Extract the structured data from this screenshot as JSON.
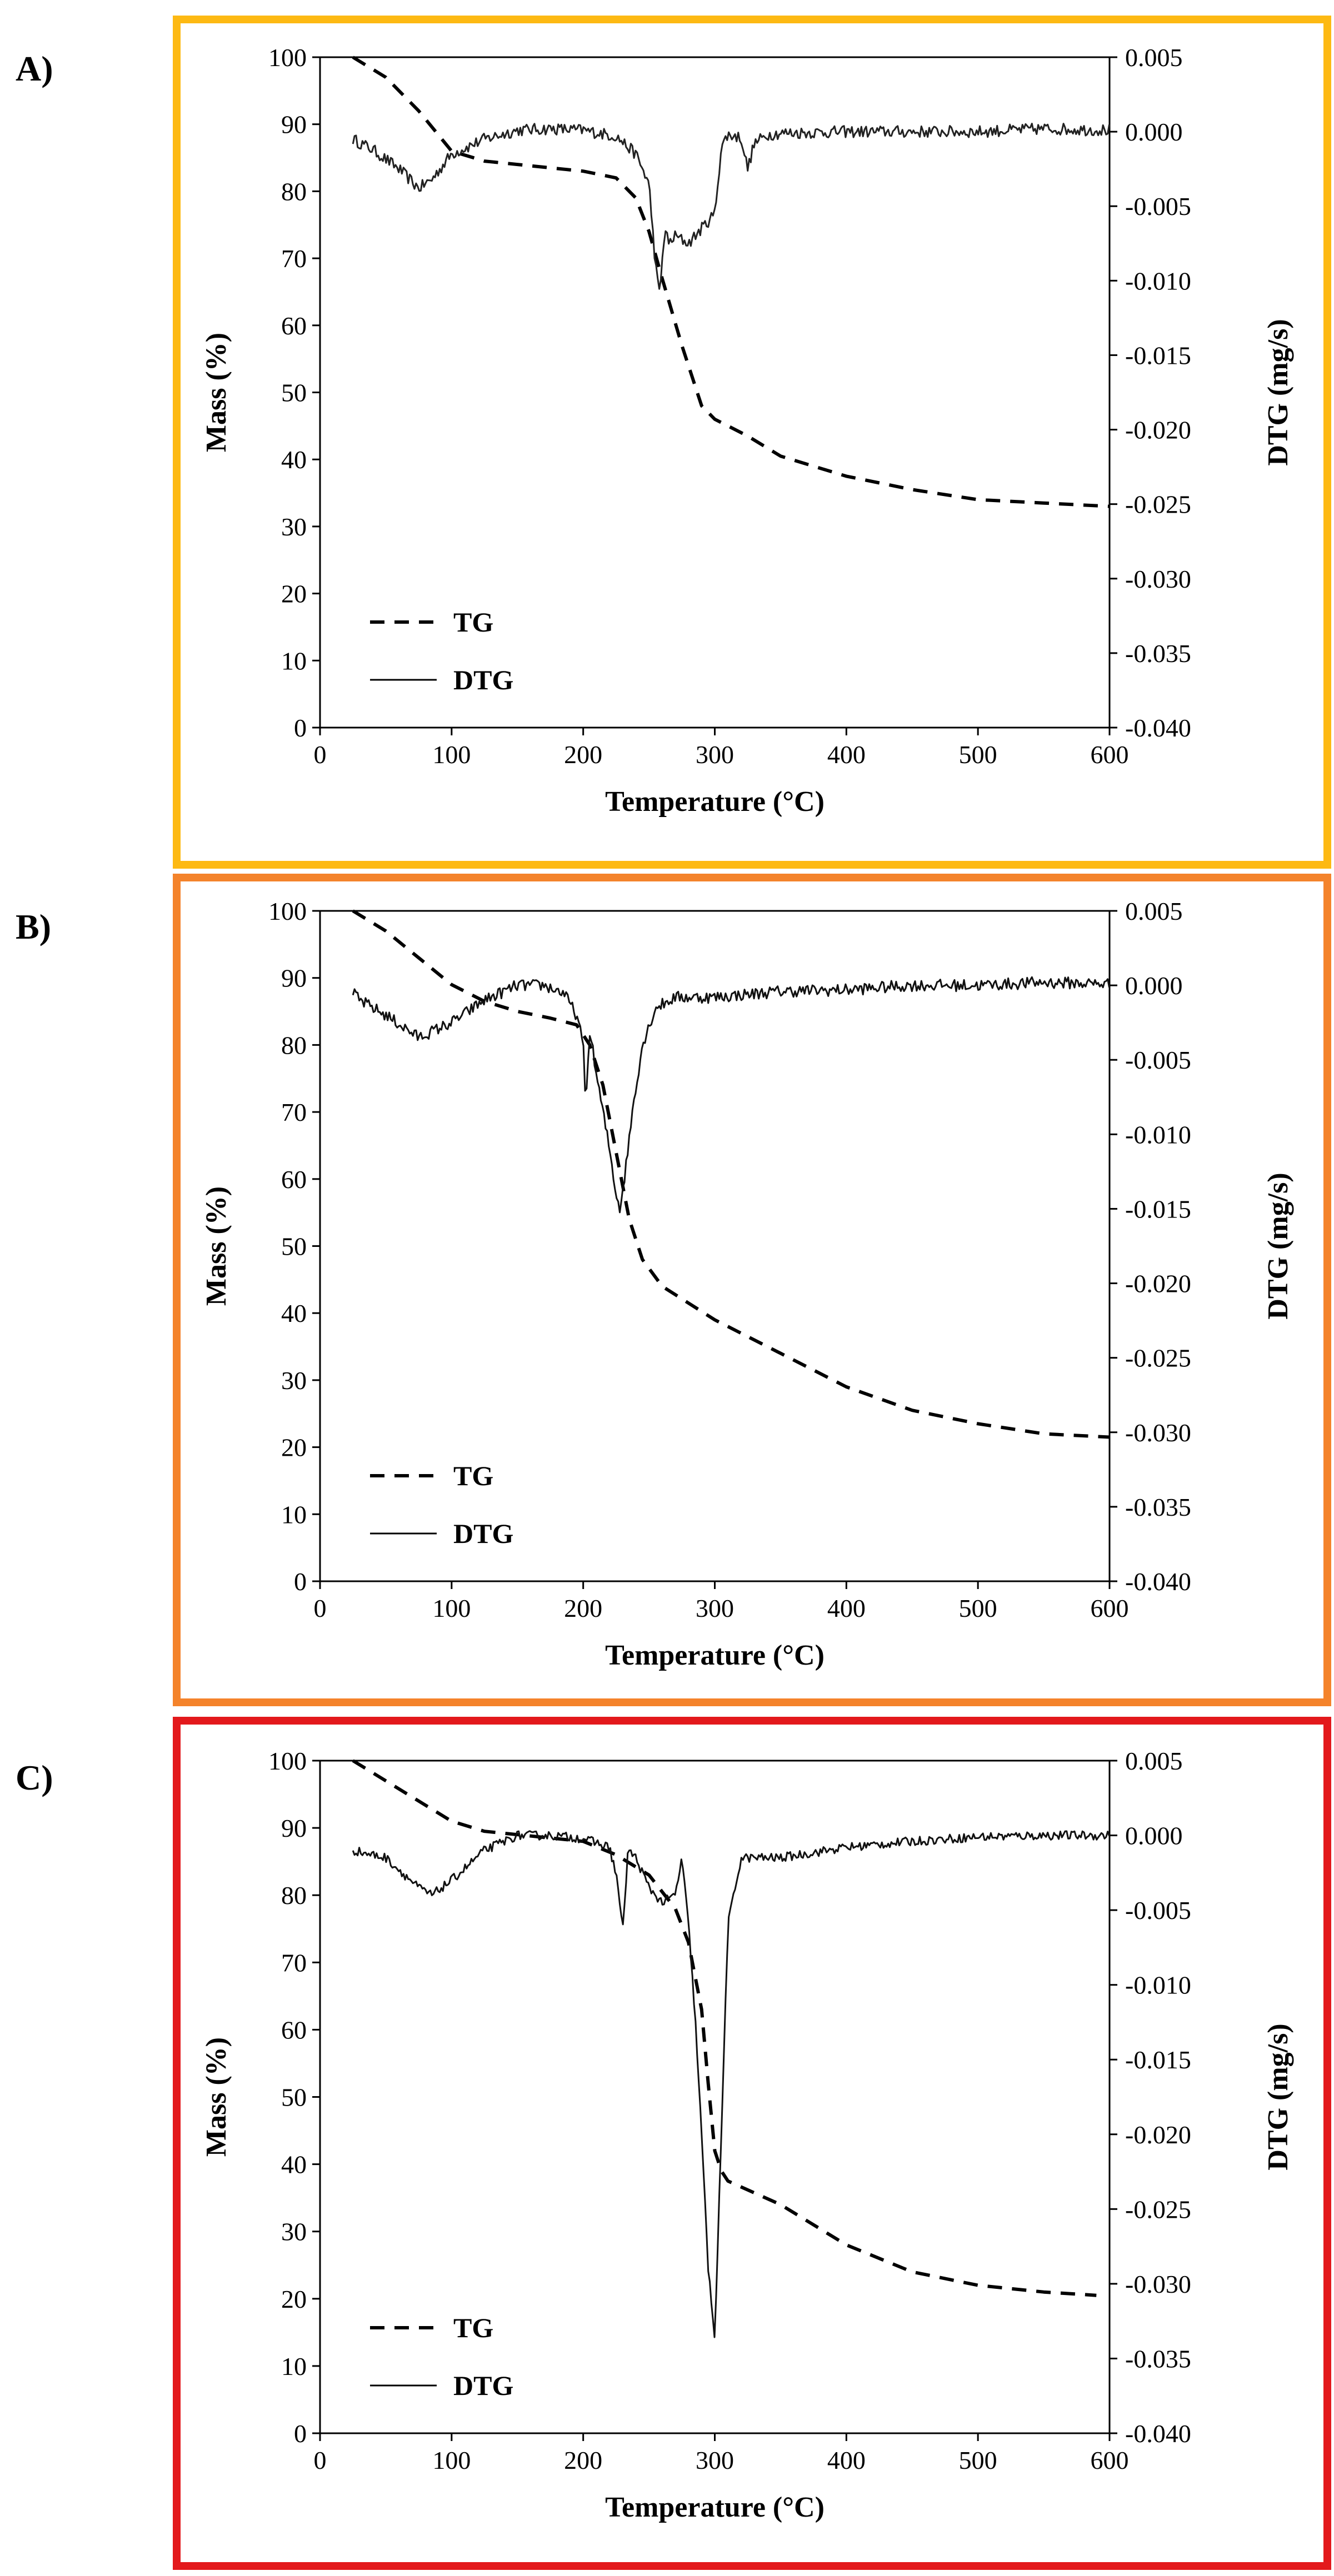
{
  "colors": {
    "panelA": "#FDB913",
    "panelB": "#F4832B",
    "panelC": "#E3191C"
  },
  "chart_data": [
    {
      "type": "line",
      "panel_label": "A)",
      "xlabel": "Temperature (°C)",
      "ylabel": "Mass (%)",
      "y2label": "DTG (mg/s)",
      "xlim": [
        0,
        600
      ],
      "ylim": [
        0,
        100
      ],
      "y2lim": [
        -0.04,
        0.005
      ],
      "x_ticks": [
        0,
        100,
        200,
        300,
        400,
        500,
        600
      ],
      "y_ticks": [
        0,
        10,
        20,
        30,
        40,
        50,
        60,
        70,
        80,
        90,
        100
      ],
      "y2_ticks": [
        "-0.040",
        "-0.035",
        "-0.030",
        "-0.025",
        "-0.020",
        "-0.015",
        "-0.010",
        "-0.005",
        "0.000",
        "0.005"
      ],
      "legend": [
        {
          "name": "TG",
          "style": "dashed"
        },
        {
          "name": "DTG",
          "style": "solid"
        }
      ],
      "series": [
        {
          "name": "TG",
          "axis": "left",
          "style": "dashed",
          "stroke": "#000000",
          "x": [
            25,
            50,
            75,
            100,
            125,
            150,
            175,
            200,
            225,
            240,
            250,
            260,
            275,
            290,
            300,
            325,
            350,
            400,
            450,
            500,
            550,
            600
          ],
          "y": [
            100,
            97,
            92,
            86,
            84.5,
            84,
            83.5,
            83,
            82,
            79,
            74,
            67,
            57,
            48,
            46,
            43.5,
            40.5,
            37.5,
            35.5,
            34,
            33.5,
            33
          ]
        },
        {
          "name": "DTG",
          "axis": "right",
          "style": "solid",
          "stroke": "#222222",
          "noise": 0.0004,
          "x": [
            25,
            40,
            60,
            75,
            85,
            100,
            125,
            150,
            175,
            200,
            225,
            240,
            250,
            255,
            258,
            262,
            265,
            270,
            280,
            290,
            300,
            305,
            310,
            320,
            325,
            330,
            340,
            350,
            400,
            450,
            500,
            550,
            600
          ],
          "y": [
            -0.0005,
            -0.0012,
            -0.0025,
            -0.0038,
            -0.0032,
            -0.0015,
            -0.0005,
            0.0001,
            0.0002,
            0.0001,
            -0.0003,
            -0.0015,
            -0.0035,
            -0.009,
            -0.011,
            -0.0065,
            -0.0075,
            -0.007,
            -0.0075,
            -0.0065,
            -0.0055,
            -0.001,
            -0.0002,
            -0.0004,
            -0.0025,
            -0.0008,
            -0.0002,
            -0.0001,
            0.0,
            0.0,
            0.0,
            0.0002,
            0.0001
          ]
        }
      ]
    },
    {
      "type": "line",
      "panel_label": "B)",
      "xlabel": "Temperature (°C)",
      "ylabel": "Mass (%)",
      "y2label": "DTG (mg/s)",
      "xlim": [
        0,
        600
      ],
      "ylim": [
        0,
        100
      ],
      "y2lim": [
        -0.04,
        0.005
      ],
      "x_ticks": [
        0,
        100,
        200,
        300,
        400,
        500,
        600
      ],
      "y_ticks": [
        0,
        10,
        20,
        30,
        40,
        50,
        60,
        70,
        80,
        90,
        100
      ],
      "y2_ticks": [
        "-0.040",
        "-0.035",
        "-0.030",
        "-0.025",
        "-0.020",
        "-0.015",
        "-0.010",
        "-0.005",
        "0.000",
        "0.005"
      ],
      "legend": [
        {
          "name": "TG",
          "style": "dashed"
        },
        {
          "name": "DTG",
          "style": "solid"
        }
      ],
      "series": [
        {
          "name": "TG",
          "axis": "left",
          "style": "dashed",
          "stroke": "#000000",
          "x": [
            25,
            50,
            75,
            100,
            125,
            150,
            175,
            195,
            205,
            215,
            225,
            235,
            245,
            260,
            280,
            300,
            350,
            400,
            450,
            500,
            550,
            600
          ],
          "y": [
            100,
            97,
            93,
            89,
            86.5,
            85,
            84,
            83,
            80,
            74,
            64,
            54,
            48,
            44,
            41.5,
            39,
            34,
            29,
            25.5,
            23.5,
            22,
            21.5
          ]
        },
        {
          "name": "DTG",
          "axis": "right",
          "style": "solid",
          "stroke": "#111111",
          "noise": 0.0004,
          "x": [
            25,
            30,
            50,
            75,
            100,
            125,
            150,
            170,
            185,
            195,
            200,
            202,
            205,
            210,
            215,
            220,
            225,
            228,
            232,
            238,
            245,
            255,
            270,
            300,
            350,
            400,
            450,
            500,
            550,
            600
          ],
          "y": [
            -0.0005,
            -0.001,
            -0.002,
            -0.0035,
            -0.0025,
            -0.001,
            0.0,
            0.0,
            -0.0005,
            -0.002,
            -0.004,
            -0.008,
            -0.003,
            -0.006,
            -0.0085,
            -0.011,
            -0.014,
            -0.015,
            -0.0125,
            -0.008,
            -0.004,
            -0.0015,
            -0.0008,
            -0.0008,
            -0.0004,
            -0.0003,
            0.0,
            0.0,
            0.0002,
            0.0001
          ]
        }
      ]
    },
    {
      "type": "line",
      "panel_label": "C)",
      "xlabel": "Temperature (°C)",
      "ylabel": "Mass (%)",
      "y2label": "DTG (mg/s)",
      "xlim": [
        0,
        600
      ],
      "ylim": [
        0,
        100
      ],
      "y2lim": [
        -0.04,
        0.005
      ],
      "x_ticks": [
        0,
        100,
        200,
        300,
        400,
        500,
        600
      ],
      "y_ticks": [
        0,
        10,
        20,
        30,
        40,
        50,
        60,
        70,
        80,
        90,
        100
      ],
      "y2_ticks": [
        "-0.040",
        "-0.035",
        "-0.030",
        "-0.025",
        "-0.020",
        "-0.015",
        "-0.010",
        "-0.005",
        "0.000",
        "0.005"
      ],
      "legend": [
        {
          "name": "TG",
          "style": "dashed"
        },
        {
          "name": "DTG",
          "style": "solid"
        }
      ],
      "series": [
        {
          "name": "TG",
          "axis": "left",
          "style": "dashed",
          "stroke": "#000000",
          "x": [
            25,
            50,
            75,
            100,
            125,
            150,
            200,
            225,
            250,
            270,
            280,
            290,
            295,
            300,
            305,
            310,
            350,
            400,
            450,
            500,
            550,
            590
          ],
          "y": [
            100,
            97,
            94,
            91,
            89.5,
            89,
            88,
            86,
            83,
            78,
            73,
            63,
            52,
            42,
            39,
            37.5,
            34,
            28,
            24,
            22,
            21,
            20.5
          ]
        },
        {
          "name": "DTG",
          "axis": "right",
          "style": "solid",
          "stroke": "#111111",
          "noise": 0.0003,
          "x": [
            25,
            50,
            75,
            85,
            100,
            125,
            150,
            175,
            200,
            220,
            226,
            230,
            234,
            240,
            250,
            260,
            270,
            275,
            280,
            285,
            290,
            295,
            300,
            305,
            310,
            320,
            350,
            400,
            450,
            500,
            550,
            600
          ],
          "y": [
            -0.001,
            -0.0015,
            -0.0035,
            -0.004,
            -0.003,
            -0.001,
            0.0,
            0.0,
            -0.0002,
            -0.0008,
            -0.003,
            -0.0065,
            -0.001,
            -0.0015,
            -0.0035,
            -0.0045,
            -0.004,
            -0.0015,
            -0.006,
            -0.012,
            -0.02,
            -0.029,
            -0.0335,
            -0.02,
            -0.006,
            -0.0015,
            -0.0015,
            -0.0008,
            -0.0004,
            -0.0001,
            0.0,
            0.0
          ]
        }
      ]
    }
  ]
}
